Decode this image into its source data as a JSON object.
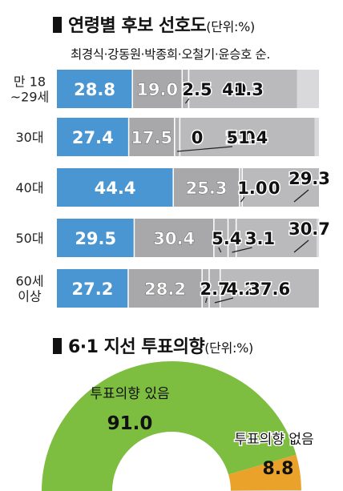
{
  "chart1": {
    "title": "연령별 후보 선호도",
    "unit": "(단위:%)",
    "legend": "최경식·강동원·박종희·오철기·윤승호 순.",
    "candidates": [
      "최경식",
      "강동원",
      "박종희",
      "오철기",
      "윤승호"
    ],
    "colors": [
      "#4a96d2",
      "#a8a8aa",
      "#b2b2b4",
      "#b2b2b4",
      "#bababc"
    ]
  },
  "chart2": {
    "title": "6·1 지선 투표의향",
    "unit": "(단위:%)"
  },
  "chart_data": [
    {
      "type": "bar",
      "orientation": "horizontal",
      "stacked": true,
      "categories": [
        "만 18~29세",
        "30대",
        "40대",
        "50대",
        "60세 이상"
      ],
      "category_lines": [
        [
          "만 18",
          "~29세"
        ],
        [
          "30대"
        ],
        [
          "40대"
        ],
        [
          "50대"
        ],
        [
          "60세",
          "이상"
        ]
      ],
      "series": [
        {
          "name": "최경식",
          "values": [
            28.8,
            27.4,
            44.4,
            29.5,
            27.2
          ]
        },
        {
          "name": "강동원",
          "values": [
            19.0,
            17.5,
            25.3,
            30.4,
            28.2
          ]
        },
        {
          "name": "박종희",
          "values": [
            2.5,
            0,
            1.0,
            5.4,
            2.7
          ]
        },
        {
          "name": "오철기",
          "values": [
            0,
            2.0,
            0,
            3.1,
            4.2
          ]
        },
        {
          "name": "윤승호",
          "values": [
            41.3,
            51.4,
            29.3,
            30.7,
            37.6
          ]
        }
      ],
      "labels": [
        [
          "28.8",
          "19.0",
          "2.5",
          "0",
          "41.3"
        ],
        [
          "27.4",
          "17.5",
          "0",
          "2.0",
          "51.4"
        ],
        [
          "44.4",
          "25.3",
          "1.0",
          "0",
          "29.3"
        ],
        [
          "29.5",
          "30.4",
          "5.4",
          "3.1",
          "30.7"
        ],
        [
          "27.2",
          "28.2",
          "2.7",
          "4.2",
          "37.6"
        ]
      ],
      "xlim": [
        0,
        100
      ]
    },
    {
      "type": "pie",
      "style": "half-donut",
      "categories": [
        "투표의향 있음",
        "투표의향 없음"
      ],
      "values": [
        91.0,
        8.8
      ],
      "labels": [
        "91.0",
        "8.8"
      ],
      "colors": [
        "#7dbd3f",
        "#eba22a"
      ]
    }
  ]
}
